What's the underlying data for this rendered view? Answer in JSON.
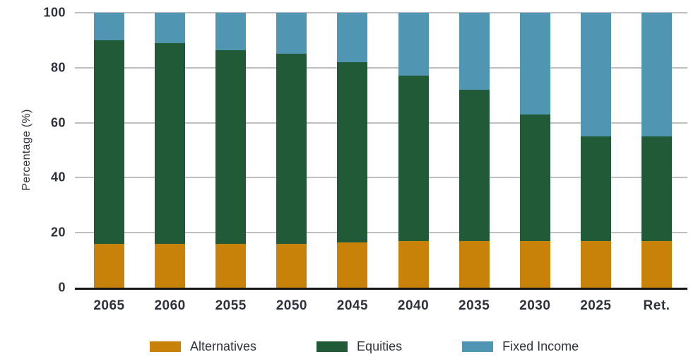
{
  "chart_data": {
    "type": "bar",
    "stacked": true,
    "title": "",
    "xlabel": "",
    "ylabel": "Percentage (%)",
    "categories": [
      "2065",
      "2060",
      "2055",
      "2050",
      "2045",
      "2040",
      "2035",
      "2030",
      "2025",
      "Ret."
    ],
    "series": [
      {
        "name": "Alternatives",
        "color": "#C8820A",
        "values": [
          16,
          16,
          16,
          16,
          16.5,
          17,
          17,
          17,
          17,
          17
        ]
      },
      {
        "name": "Equities",
        "color": "#205A37",
        "values": [
          74,
          73,
          70.5,
          69,
          65.5,
          60,
          55,
          46,
          38,
          38
        ]
      },
      {
        "name": "Fixed Income",
        "color": "#5096B2",
        "values": [
          10,
          11,
          13.5,
          15,
          18,
          23,
          28,
          37,
          45,
          45
        ]
      }
    ],
    "yticks": [
      0,
      20,
      40,
      60,
      80,
      100
    ],
    "ylim": [
      0,
      100
    ],
    "grid": true,
    "legend_position": "bottom"
  },
  "style": {
    "gridline_color": "#BFBFBF",
    "axis_line_color": "#161616",
    "text_color": "#2E313C"
  }
}
